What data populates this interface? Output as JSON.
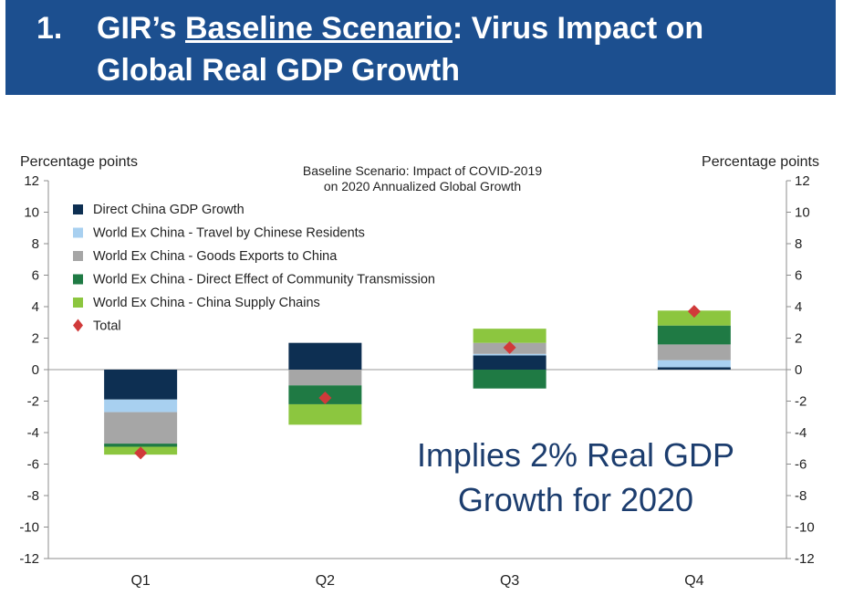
{
  "header": {
    "number": "1.",
    "line1_before": "GIR’s ",
    "line1_underlined": "Baseline Scenario",
    "line1_after": ": Virus Impact on",
    "line2": "Global Real GDP Growth"
  },
  "chart_data": {
    "type": "bar",
    "stacked": true,
    "title_lines": [
      "Baseline Scenario: Impact of COVID-2019",
      "on 2020 Annualized Global Growth"
    ],
    "ylabel_left": "Percentage  points",
    "ylabel_right": "Percentage  points",
    "ylim": [
      -12,
      12
    ],
    "yticks": [
      12,
      10,
      8,
      6,
      4,
      2,
      0,
      -2,
      -4,
      -6,
      -8,
      -10,
      -12
    ],
    "categories": [
      "Q1",
      "Q2",
      "Q3",
      "Q4"
    ],
    "series": [
      {
        "name": "Direct China GDP Growth",
        "color": "#0d2f52",
        "values": [
          -1.9,
          1.7,
          0.9,
          0.15
        ]
      },
      {
        "name": "World Ex China - Travel by  Chinese Residents",
        "color": "#a8d0f0",
        "values": [
          -0.8,
          0.0,
          0.1,
          0.45
        ]
      },
      {
        "name": "World Ex China - Goods Exports to China",
        "color": "#a6a6a6",
        "values": [
          -2.0,
          -1.0,
          0.7,
          1.0
        ]
      },
      {
        "name": "World Ex China - Direct Effect of Community Transmission",
        "color": "#1f7a44",
        "values": [
          -0.2,
          -1.2,
          -1.2,
          1.2
        ]
      },
      {
        "name": "World Ex China - China Supply Chains",
        "color": "#8cc63f",
        "values": [
          -0.5,
          -1.3,
          0.9,
          0.95
        ]
      }
    ],
    "total": {
      "name": "Total",
      "color": "#d03a3a",
      "values": [
        -5.3,
        -1.8,
        1.4,
        3.7
      ]
    },
    "annotation_lines": [
      "Implies 2% Real GDP",
      "Growth for 2020"
    ]
  }
}
